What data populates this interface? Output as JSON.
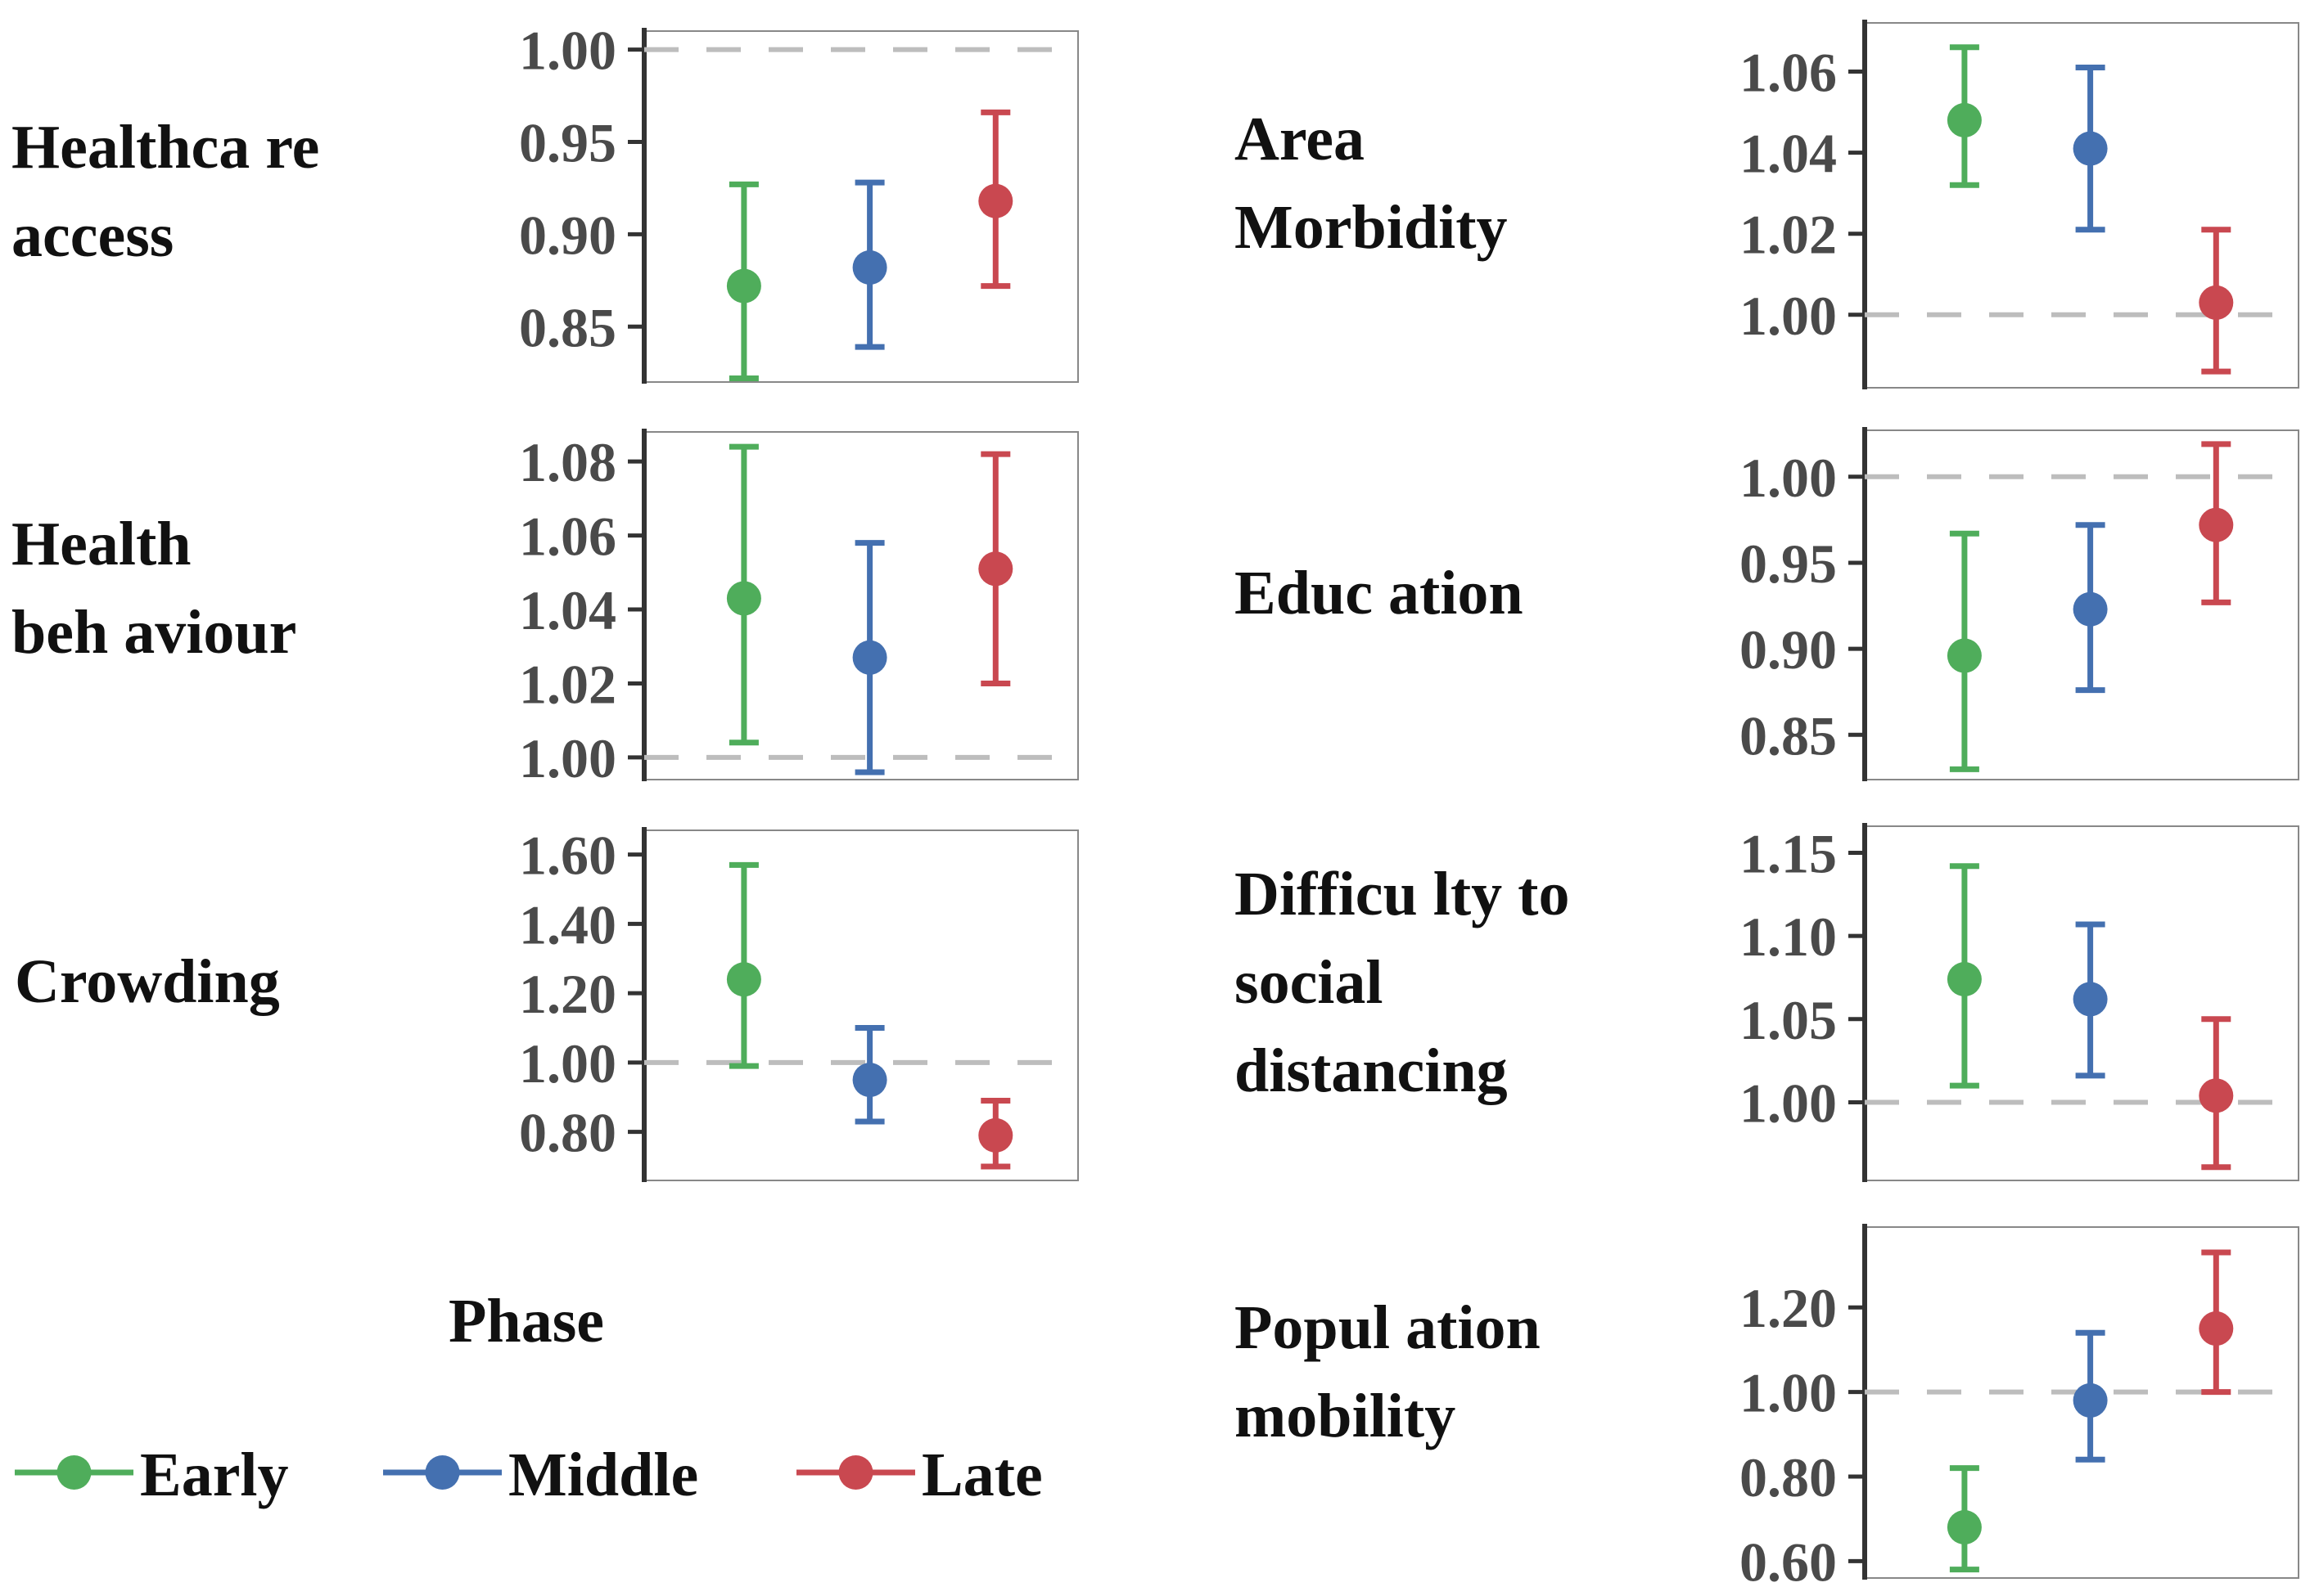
{
  "colors": {
    "early": "#4fad5b",
    "middle": "#4470b0",
    "late": "#c94850",
    "ref": "#bdbdbd",
    "axis": "#333333",
    "frame": "#888888"
  },
  "legend": {
    "phase_title": "Phase",
    "items": [
      {
        "label": "Early",
        "color": "#4fad5b"
      },
      {
        "label": "Middle",
        "color": "#4470b0"
      },
      {
        "label": "Late",
        "color": "#c94850"
      }
    ]
  },
  "chart_data": [
    {
      "type": "scatter",
      "title": "Healthcare access",
      "title_lines": [
        "Healthca re",
        "access"
      ],
      "reference": 1.0,
      "ylim": [
        0.82,
        1.01
      ],
      "yticks": [
        "0.85",
        "0.90",
        "0.95",
        "1.00"
      ],
      "series": [
        {
          "name": "Early",
          "value": 0.872,
          "lower": 0.822,
          "upper": 0.927
        },
        {
          "name": "Middle",
          "value": 0.882,
          "lower": 0.839,
          "upper": 0.928
        },
        {
          "name": "Late",
          "value": 0.918,
          "lower": 0.872,
          "upper": 0.966
        }
      ]
    },
    {
      "type": "scatter",
      "title": "Area Morbidity",
      "title_lines": [
        "Area",
        "Morbidity"
      ],
      "reference": 1.0,
      "ylim": [
        0.982,
        1.072
      ],
      "yticks": [
        "1.00",
        "1.02",
        "1.04",
        "1.06"
      ],
      "series": [
        {
          "name": "Early",
          "value": 1.048,
          "lower": 1.032,
          "upper": 1.066
        },
        {
          "name": "Middle",
          "value": 1.041,
          "lower": 1.021,
          "upper": 1.061
        },
        {
          "name": "Late",
          "value": 1.003,
          "lower": 0.986,
          "upper": 1.021
        }
      ]
    },
    {
      "type": "scatter",
      "title": "Health behaviour",
      "title_lines": [
        "Health",
        "beh aviour"
      ],
      "reference": 1.0,
      "ylim": [
        0.994,
        1.088
      ],
      "yticks": [
        "1.00",
        "1.02",
        "1.04",
        "1.06",
        "1.08"
      ],
      "series": [
        {
          "name": "Early",
          "value": 1.043,
          "lower": 1.004,
          "upper": 1.084
        },
        {
          "name": "Middle",
          "value": 1.027,
          "lower": 0.996,
          "upper": 1.058
        },
        {
          "name": "Late",
          "value": 1.051,
          "lower": 1.02,
          "upper": 1.082
        }
      ]
    },
    {
      "type": "scatter",
      "title": "Education",
      "title_lines": [
        "Educ ation"
      ],
      "reference": 1.0,
      "ylim": [
        0.824,
        1.027
      ],
      "yticks": [
        "0.85",
        "0.90",
        "0.95",
        "1.00"
      ],
      "series": [
        {
          "name": "Early",
          "value": 0.896,
          "lower": 0.83,
          "upper": 0.967
        },
        {
          "name": "Middle",
          "value": 0.923,
          "lower": 0.876,
          "upper": 0.972
        },
        {
          "name": "Late",
          "value": 0.972,
          "lower": 0.927,
          "upper": 1.019
        }
      ]
    },
    {
      "type": "scatter",
      "title": "Crowding",
      "title_lines": [
        "Crowding"
      ],
      "reference": 1.0,
      "ylim": [
        0.66,
        1.67
      ],
      "yticks": [
        "0.80",
        "1.00",
        "1.20",
        "1.40",
        "1.60"
      ],
      "series": [
        {
          "name": "Early",
          "value": 1.24,
          "lower": 0.99,
          "upper": 1.57
        },
        {
          "name": "Middle",
          "value": 0.95,
          "lower": 0.83,
          "upper": 1.1
        },
        {
          "name": "Late",
          "value": 0.79,
          "lower": 0.7,
          "upper": 0.89
        }
      ]
    },
    {
      "type": "scatter",
      "title": "Difficulty to social distancing",
      "title_lines": [
        "Difficu lty to",
        "social",
        "distancing"
      ],
      "reference": 1.0,
      "ylim": [
        0.953,
        1.166
      ],
      "yticks": [
        "1.00",
        "1.05",
        "1.10",
        "1.15"
      ],
      "series": [
        {
          "name": "Early",
          "value": 1.074,
          "lower": 1.01,
          "upper": 1.142
        },
        {
          "name": "Middle",
          "value": 1.062,
          "lower": 1.016,
          "upper": 1.107
        },
        {
          "name": "Late",
          "value": 1.004,
          "lower": 0.961,
          "upper": 1.05
        }
      ]
    },
    {
      "type": "scatter",
      "title": "Population mobility",
      "title_lines": [
        "Popul ation",
        "mobility"
      ],
      "reference": 1.0,
      "ylim": [
        0.56,
        1.39
      ],
      "yticks": [
        "0.60",
        "0.80",
        "1.00",
        "1.20"
      ],
      "series": [
        {
          "name": "Early",
          "value": 0.68,
          "lower": 0.58,
          "upper": 0.82
        },
        {
          "name": "Middle",
          "value": 0.98,
          "lower": 0.84,
          "upper": 1.14
        },
        {
          "name": "Late",
          "value": 1.15,
          "lower": 1.0,
          "upper": 1.33
        }
      ]
    }
  ]
}
